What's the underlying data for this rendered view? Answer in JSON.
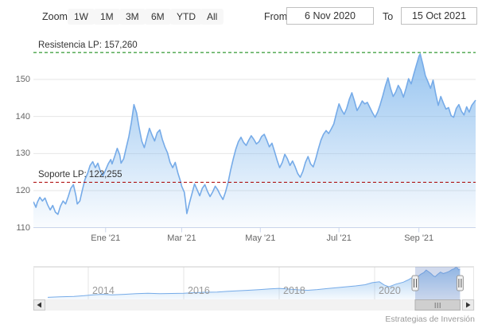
{
  "toolbar": {
    "zoom_label": "Zoom",
    "range_buttons": [
      "1W",
      "1M",
      "3M",
      "6M",
      "YTD",
      "All"
    ],
    "from_label": "From",
    "from_value": "6 Nov 2020",
    "to_label": "To",
    "to_value": "15 Oct 2021"
  },
  "watermark": "Estrategias de Inversión",
  "chart_data": {
    "type": "area",
    "title": "",
    "legend": "none",
    "grid": true,
    "colors": {
      "line": "#76abe8",
      "fill_top": "rgba(124,181,236,0.85)",
      "fill_bottom": "rgba(124,181,236,0.04)",
      "gridline": "#e6e6e6",
      "axis_line": "#ccd6eb",
      "resistance": "#008000",
      "support": "#aa0000",
      "mask": "rgba(102,133,194,0.3)"
    },
    "main": {
      "x_unit": "days since 6 Nov 2020",
      "x_range": [
        0,
        343
      ],
      "ylim": [
        108,
        158
      ],
      "y_ticks": [
        110,
        120,
        130,
        140,
        150
      ],
      "x_ticks": [
        {
          "t": 56,
          "label": "Ene '21"
        },
        {
          "t": 115,
          "label": "Mar '21"
        },
        {
          "t": 176,
          "label": "May '21"
        },
        {
          "t": 237,
          "label": "Jul '21"
        },
        {
          "t": 299,
          "label": "Sep '21"
        }
      ],
      "plot_lines": [
        {
          "label": "Resistencia LP: 157,260",
          "value": 157.26,
          "style": "dashed",
          "color_key": "resistance"
        },
        {
          "label": "Soporte LP: 122,255",
          "value": 122.255,
          "style": "dashed",
          "color_key": "support"
        }
      ],
      "series": [
        [
          0,
          117.0
        ],
        [
          2,
          115.5
        ],
        [
          3,
          116.8
        ],
        [
          5,
          118.2
        ],
        [
          7,
          117.2
        ],
        [
          9,
          118.0
        ],
        [
          11,
          116.2
        ],
        [
          13,
          114.8
        ],
        [
          15,
          116.0
        ],
        [
          17,
          114.2
        ],
        [
          19,
          113.6
        ],
        [
          21,
          115.8
        ],
        [
          23,
          117.2
        ],
        [
          25,
          116.4
        ],
        [
          27,
          118.4
        ],
        [
          29,
          120.6
        ],
        [
          31,
          121.6
        ],
        [
          33,
          118.6
        ],
        [
          34,
          116.4
        ],
        [
          36,
          117.2
        ],
        [
          38,
          120.2
        ],
        [
          40,
          123.0
        ],
        [
          42,
          124.6
        ],
        [
          44,
          126.8
        ],
        [
          46,
          127.8
        ],
        [
          48,
          126.2
        ],
        [
          50,
          127.4
        ],
        [
          52,
          125.2
        ],
        [
          54,
          124.0
        ],
        [
          56,
          125.6
        ],
        [
          58,
          127.2
        ],
        [
          60,
          128.4
        ],
        [
          61,
          127.2
        ],
        [
          63,
          129.2
        ],
        [
          65,
          131.4
        ],
        [
          67,
          129.6
        ],
        [
          68,
          127.4
        ],
        [
          70,
          128.6
        ],
        [
          72,
          131.6
        ],
        [
          74,
          134.6
        ],
        [
          76,
          138.4
        ],
        [
          78,
          143.2
        ],
        [
          80,
          141.0
        ],
        [
          82,
          137.0
        ],
        [
          84,
          133.4
        ],
        [
          86,
          131.6
        ],
        [
          88,
          134.2
        ],
        [
          90,
          136.8
        ],
        [
          92,
          135.0
        ],
        [
          94,
          133.4
        ],
        [
          96,
          135.6
        ],
        [
          98,
          136.4
        ],
        [
          100,
          133.8
        ],
        [
          102,
          131.8
        ],
        [
          104,
          130.2
        ],
        [
          106,
          127.6
        ],
        [
          108,
          126.2
        ],
        [
          110,
          127.6
        ],
        [
          112,
          124.8
        ],
        [
          114,
          122.6
        ],
        [
          115,
          121.2
        ],
        [
          117,
          119.6
        ],
        [
          118,
          117.0
        ],
        [
          119,
          113.8
        ],
        [
          121,
          116.6
        ],
        [
          123,
          119.2
        ],
        [
          125,
          121.8
        ],
        [
          127,
          120.2
        ],
        [
          129,
          118.6
        ],
        [
          131,
          120.6
        ],
        [
          133,
          121.6
        ],
        [
          135,
          119.8
        ],
        [
          137,
          118.4
        ],
        [
          139,
          119.6
        ],
        [
          141,
          121.2
        ],
        [
          143,
          120.2
        ],
        [
          145,
          118.8
        ],
        [
          147,
          117.6
        ],
        [
          149,
          119.6
        ],
        [
          151,
          122.2
        ],
        [
          153,
          125.6
        ],
        [
          155,
          128.6
        ],
        [
          157,
          131.2
        ],
        [
          159,
          133.2
        ],
        [
          161,
          134.4
        ],
        [
          163,
          133.0
        ],
        [
          165,
          132.2
        ],
        [
          167,
          133.6
        ],
        [
          169,
          134.8
        ],
        [
          171,
          133.8
        ],
        [
          173,
          132.6
        ],
        [
          175,
          133.2
        ],
        [
          177,
          134.6
        ],
        [
          179,
          135.2
        ],
        [
          181,
          133.6
        ],
        [
          183,
          131.8
        ],
        [
          185,
          132.8
        ],
        [
          187,
          130.6
        ],
        [
          189,
          128.2
        ],
        [
          191,
          126.2
        ],
        [
          193,
          127.6
        ],
        [
          195,
          129.8
        ],
        [
          197,
          128.6
        ],
        [
          199,
          126.8
        ],
        [
          201,
          128.0
        ],
        [
          203,
          126.4
        ],
        [
          205,
          124.6
        ],
        [
          207,
          123.6
        ],
        [
          209,
          125.2
        ],
        [
          211,
          127.6
        ],
        [
          213,
          129.2
        ],
        [
          215,
          127.2
        ],
        [
          217,
          126.4
        ],
        [
          219,
          128.6
        ],
        [
          221,
          131.2
        ],
        [
          223,
          133.6
        ],
        [
          225,
          135.2
        ],
        [
          227,
          136.2
        ],
        [
          229,
          135.4
        ],
        [
          231,
          136.6
        ],
        [
          233,
          138.0
        ],
        [
          235,
          140.8
        ],
        [
          237,
          143.4
        ],
        [
          239,
          141.8
        ],
        [
          241,
          140.6
        ],
        [
          243,
          142.2
        ],
        [
          245,
          144.6
        ],
        [
          247,
          146.4
        ],
        [
          249,
          144.2
        ],
        [
          251,
          141.6
        ],
        [
          253,
          142.8
        ],
        [
          255,
          144.2
        ],
        [
          257,
          143.4
        ],
        [
          259,
          143.8
        ],
        [
          261,
          142.4
        ],
        [
          263,
          141.0
        ],
        [
          265,
          139.8
        ],
        [
          267,
          141.2
        ],
        [
          269,
          143.2
        ],
        [
          271,
          145.6
        ],
        [
          273,
          148.2
        ],
        [
          275,
          150.4
        ],
        [
          277,
          147.6
        ],
        [
          279,
          145.4
        ],
        [
          281,
          146.6
        ],
        [
          283,
          148.4
        ],
        [
          285,
          147.2
        ],
        [
          287,
          145.2
        ],
        [
          289,
          147.6
        ],
        [
          291,
          150.2
        ],
        [
          293,
          148.8
        ],
        [
          295,
          151.4
        ],
        [
          297,
          153.8
        ],
        [
          299,
          156.2
        ],
        [
          300,
          156.9
        ],
        [
          302,
          154.2
        ],
        [
          304,
          151.0
        ],
        [
          306,
          149.4
        ],
        [
          308,
          147.6
        ],
        [
          310,
          149.8
        ],
        [
          312,
          146.2
        ],
        [
          314,
          143.0
        ],
        [
          316,
          145.4
        ],
        [
          318,
          143.6
        ],
        [
          320,
          142.0
        ],
        [
          322,
          142.4
        ],
        [
          324,
          140.2
        ],
        [
          326,
          139.8
        ],
        [
          328,
          142.2
        ],
        [
          330,
          143.2
        ],
        [
          332,
          141.4
        ],
        [
          334,
          140.4
        ],
        [
          336,
          142.6
        ],
        [
          338,
          141.2
        ],
        [
          340,
          143.0
        ],
        [
          343,
          144.4
        ]
      ]
    },
    "navigator": {
      "x_unit": "year",
      "x_range": [
        2013.15,
        2021.79
      ],
      "x_ticks": [
        {
          "t": 2014,
          "label": "2014"
        },
        {
          "t": 2016,
          "label": "2016"
        },
        {
          "t": 2018,
          "label": "2018"
        },
        {
          "t": 2020,
          "label": "2020"
        }
      ],
      "selection": [
        2020.85,
        2021.79
      ],
      "series": [
        [
          2013.15,
          24
        ],
        [
          2013.4,
          26
        ],
        [
          2013.7,
          28
        ],
        [
          2013.9,
          31
        ],
        [
          2014.1,
          35
        ],
        [
          2014.3,
          37
        ],
        [
          2014.5,
          35
        ],
        [
          2014.75,
          37
        ],
        [
          2015.0,
          40
        ],
        [
          2015.25,
          42
        ],
        [
          2015.5,
          40
        ],
        [
          2015.75,
          41
        ],
        [
          2016.0,
          42
        ],
        [
          2016.2,
          44
        ],
        [
          2016.45,
          46
        ],
        [
          2016.7,
          47
        ],
        [
          2016.9,
          50
        ],
        [
          2017.1,
          52
        ],
        [
          2017.35,
          55
        ],
        [
          2017.6,
          58
        ],
        [
          2017.8,
          61
        ],
        [
          2018.0,
          63
        ],
        [
          2018.2,
          60
        ],
        [
          2018.4,
          57
        ],
        [
          2018.6,
          55
        ],
        [
          2018.8,
          58
        ],
        [
          2019.0,
          62
        ],
        [
          2019.2,
          66
        ],
        [
          2019.4,
          70
        ],
        [
          2019.6,
          74
        ],
        [
          2019.8,
          79
        ],
        [
          2019.95,
          88
        ],
        [
          2020.1,
          92
        ],
        [
          2020.2,
          78
        ],
        [
          2020.3,
          70
        ],
        [
          2020.45,
          82
        ],
        [
          2020.6,
          90
        ],
        [
          2020.7,
          100
        ],
        [
          2020.8,
          112
        ],
        [
          2020.85,
          117
        ],
        [
          2020.9,
          114
        ],
        [
          2020.97,
          125
        ],
        [
          2021.03,
          132
        ],
        [
          2021.08,
          143
        ],
        [
          2021.13,
          136
        ],
        [
          2021.18,
          128
        ],
        [
          2021.23,
          118
        ],
        [
          2021.27,
          114
        ],
        [
          2021.32,
          124
        ],
        [
          2021.38,
          134
        ],
        [
          2021.44,
          128
        ],
        [
          2021.5,
          132
        ],
        [
          2021.56,
          137
        ],
        [
          2021.62,
          145
        ],
        [
          2021.67,
          149
        ],
        [
          2021.71,
          157
        ],
        [
          2021.74,
          150
        ],
        [
          2021.76,
          144
        ],
        [
          2021.79,
          146
        ]
      ]
    }
  }
}
